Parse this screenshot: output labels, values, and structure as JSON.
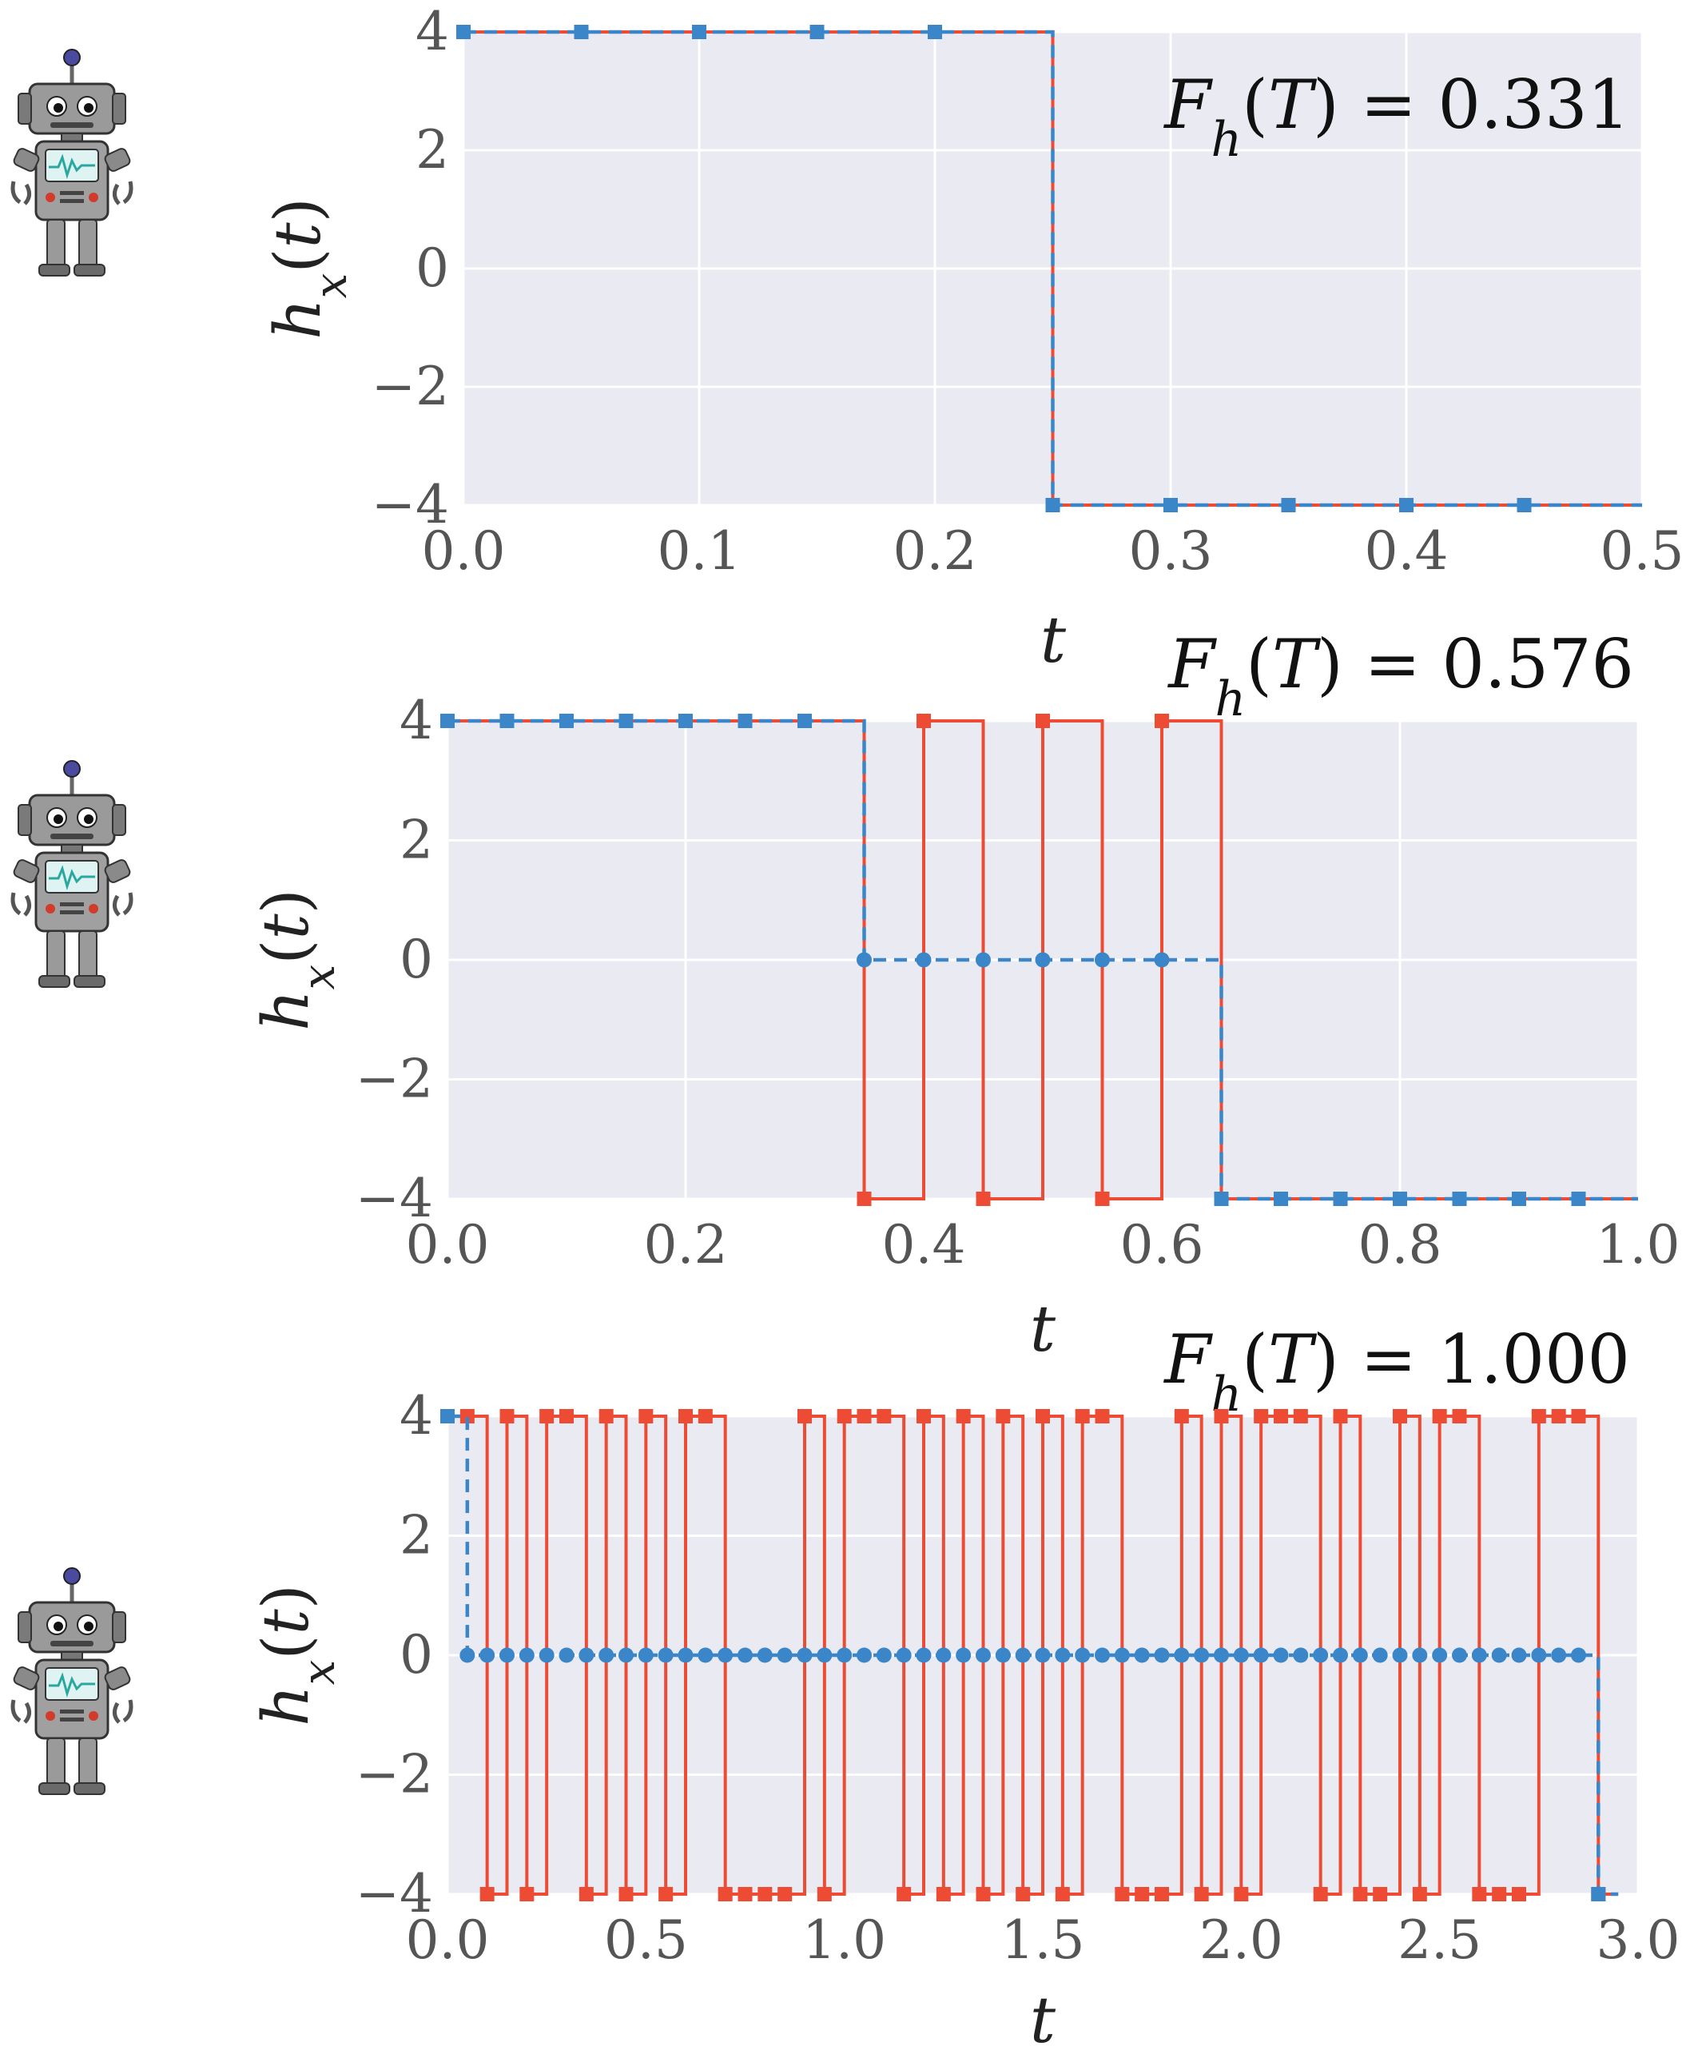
{
  "colors": {
    "red": "#ee4b35",
    "blue": "#3a86c8",
    "panel_bg": "#eaeaf2",
    "grid": "#ffffff"
  },
  "icon": "robot-icon",
  "chart_data": [
    {
      "type": "line",
      "drawstyle": "steps-post",
      "xlabel": "t",
      "ylabel": "h_x(t)",
      "xlim": [
        0,
        0.5
      ],
      "ylim": [
        -4,
        4
      ],
      "xticks": [
        0.0,
        0.1,
        0.2,
        0.3,
        0.4,
        0.5
      ],
      "xtick_labels": [
        "0.0",
        "0.1",
        "0.2",
        "0.3",
        "0.4",
        "0.5"
      ],
      "yticks": [
        4,
        2,
        0,
        -2,
        -4
      ],
      "ytick_labels": [
        "4",
        "2",
        "0",
        "−2",
        "−4"
      ],
      "annotation": "F_h(T) = 0.331",
      "grid": true,
      "series": [
        {
          "style": "solid",
          "color": "red",
          "marker": "square",
          "dt": 0.05,
          "values": [
            4,
            4,
            4,
            4,
            4,
            -4,
            -4,
            -4,
            -4,
            -4
          ]
        },
        {
          "style": "dashed",
          "color": "blue",
          "marker": "square",
          "dt": 0.05,
          "values": [
            4,
            4,
            4,
            4,
            4,
            -4,
            -4,
            -4,
            -4,
            -4
          ]
        }
      ]
    },
    {
      "type": "line",
      "drawstyle": "steps-post",
      "xlabel": "t",
      "ylabel": "h_x(t)",
      "xlim": [
        0,
        1.0
      ],
      "ylim": [
        -4,
        4
      ],
      "xticks": [
        0.0,
        0.2,
        0.4,
        0.6,
        0.8,
        1.0
      ],
      "xtick_labels": [
        "0.0",
        "0.2",
        "0.4",
        "0.6",
        "0.8",
        "1.0"
      ],
      "yticks": [
        4,
        2,
        0,
        -2,
        -4
      ],
      "ytick_labels": [
        "4",
        "2",
        "0",
        "−2",
        "−4"
      ],
      "annotation": "F_h(T) = 0.576",
      "grid": true,
      "series": [
        {
          "style": "solid",
          "color": "red",
          "marker": "square",
          "dt": 0.05,
          "values": [
            4,
            4,
            4,
            4,
            4,
            4,
            4,
            -4,
            4,
            -4,
            4,
            -4,
            4,
            -4,
            -4,
            -4,
            -4,
            -4,
            -4,
            -4
          ]
        },
        {
          "style": "dashed",
          "color": "blue",
          "marker": "mixed",
          "dt": 0.05,
          "values": [
            4,
            4,
            4,
            4,
            4,
            4,
            4,
            0,
            0,
            0,
            0,
            0,
            0,
            -4,
            -4,
            -4,
            -4,
            -4,
            -4,
            -4
          ]
        }
      ]
    },
    {
      "type": "line",
      "drawstyle": "steps-post",
      "xlabel": "t",
      "ylabel": "h_x(t)",
      "xlim": [
        0,
        3.0
      ],
      "ylim": [
        -4,
        4
      ],
      "xticks": [
        0.0,
        0.5,
        1.0,
        1.5,
        2.0,
        2.5,
        3.0
      ],
      "xtick_labels": [
        "0.0",
        "0.5",
        "1.0",
        "1.5",
        "2.0",
        "2.5",
        "3.0"
      ],
      "yticks": [
        4,
        2,
        0,
        -2,
        -4
      ],
      "ytick_labels": [
        "4",
        "2",
        "0",
        "−2",
        "−4"
      ],
      "annotation": "F_h(T) = 1.000",
      "grid": true,
      "series": [
        {
          "style": "solid",
          "color": "red",
          "marker": "square",
          "dt": 0.05,
          "values": [
            4,
            4,
            -4,
            4,
            -4,
            4,
            4,
            -4,
            4,
            -4,
            4,
            -4,
            4,
            4,
            -4,
            -4,
            -4,
            -4,
            4,
            -4,
            4,
            4,
            4,
            -4,
            4,
            -4,
            4,
            -4,
            4,
            -4,
            4,
            -4,
            4,
            4,
            -4,
            -4,
            -4,
            4,
            -4,
            4,
            -4,
            4,
            4,
            4,
            -4,
            4,
            -4,
            -4,
            4,
            -4,
            4,
            4,
            -4,
            -4,
            -4,
            4,
            4,
            4,
            -4
          ]
        },
        {
          "style": "dashed",
          "color": "blue",
          "marker": "mixed",
          "dt": 0.05,
          "values": [
            4,
            0,
            0,
            0,
            0,
            0,
            0,
            0,
            0,
            0,
            0,
            0,
            0,
            0,
            0,
            0,
            0,
            0,
            0,
            0,
            0,
            0,
            0,
            0,
            0,
            0,
            0,
            0,
            0,
            0,
            0,
            0,
            0,
            0,
            0,
            0,
            0,
            0,
            0,
            0,
            0,
            0,
            0,
            0,
            0,
            0,
            0,
            0,
            0,
            0,
            0,
            0,
            0,
            0,
            0,
            0,
            0,
            0,
            -4
          ]
        }
      ]
    }
  ]
}
